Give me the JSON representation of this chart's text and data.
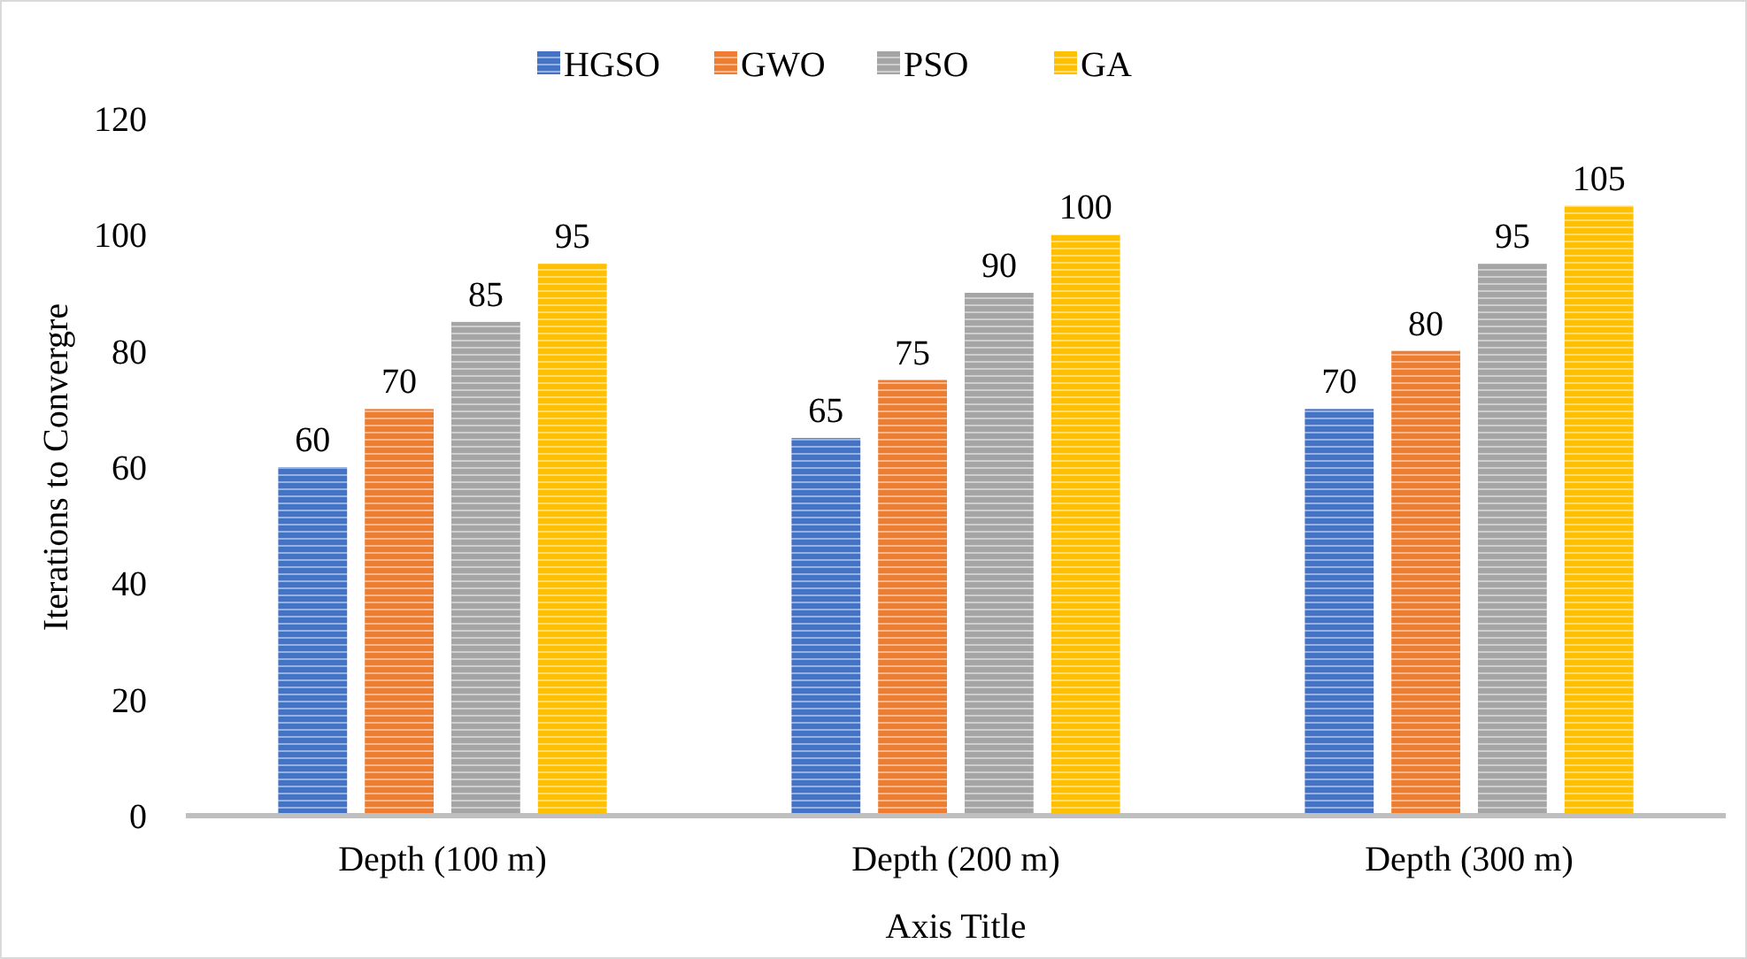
{
  "chart_data": {
    "type": "bar",
    "xlabel": "Axis Title",
    "ylabel": "Iterations to Convergre",
    "categories": [
      "Depth (100 m)",
      "Depth (200 m)",
      "Depth (300 m)"
    ],
    "series": [
      {
        "name": "HGSO",
        "color": "#4472c4",
        "values": [
          60,
          65,
          70
        ]
      },
      {
        "name": "GWO",
        "color": "#ed7d31",
        "values": [
          70,
          75,
          80
        ]
      },
      {
        "name": "PSO",
        "color": "#a5a5a5",
        "values": [
          85,
          90,
          95
        ]
      },
      {
        "name": "GA",
        "color": "#ffc000",
        "values": [
          95,
          100,
          105
        ]
      }
    ],
    "ylim": [
      0,
      120
    ],
    "yticks": [
      0,
      20,
      40,
      60,
      80,
      100,
      120
    ],
    "grid": false,
    "legend": "top",
    "data_labels": true
  }
}
